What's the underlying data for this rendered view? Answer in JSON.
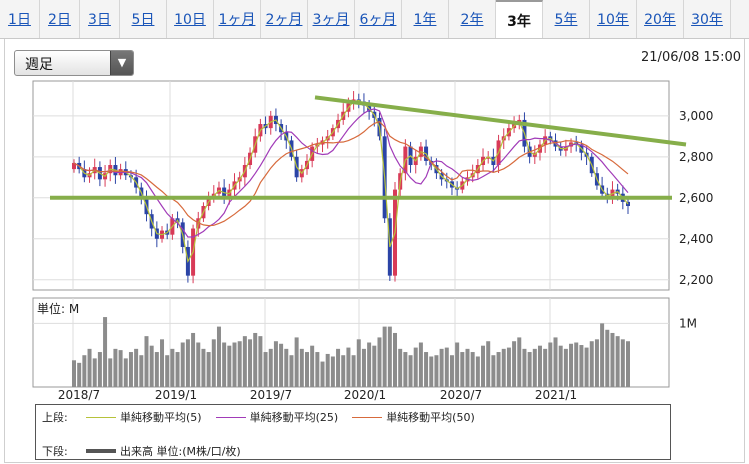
{
  "tabs": [
    "1日",
    "2日",
    "3日",
    "5日",
    "10日",
    "1ヶ月",
    "2ヶ月",
    "3ヶ月",
    "6ヶ月",
    "1年",
    "2年",
    "3年",
    "5年",
    "10年",
    "20年",
    "30年"
  ],
  "active_tab": "3年",
  "period_select": "週足",
  "datetime": "21/06/08 15:00",
  "legend": {
    "upper_label": "上段:",
    "lower_label": "下段:",
    "ma5": "単純移動平均(5)",
    "ma25": "単純移動平均(25)",
    "ma50": "単純移動平均(50)",
    "volume": "出来高 単位:(M株/口/枚)"
  },
  "colors": {
    "up": "#d83a57",
    "down": "#2b44a6",
    "ma5": "#b6c23a",
    "ma25": "#a13bb8",
    "ma50": "#d76a3c",
    "trend": "#86ae4a",
    "volume": "#8c8c8c"
  },
  "chart_data": {
    "type": "candlestick",
    "x_ticks": [
      "2018/7",
      "2019/1",
      "2019/7",
      "2020/1",
      "2020/7",
      "2021/1"
    ],
    "price_axis": {
      "ticks": [
        2200,
        2400,
        2600,
        2800,
        3000
      ],
      "ylim": [
        2150,
        3170
      ],
      "labels": [
        "2,200",
        "2,400",
        "2,600",
        "2,800",
        "3,000"
      ]
    },
    "volume_axis": {
      "unit_label": "単位: M",
      "tick_label": "1M",
      "tick_value": 1.0,
      "ylim": [
        0,
        1.4
      ]
    },
    "price_series": [
      2770,
      2740,
      2700,
      2720,
      2750,
      2690,
      2720,
      2760,
      2710,
      2740,
      2710,
      2700,
      2650,
      2600,
      2520,
      2450,
      2400,
      2440,
      2420,
      2500,
      2480,
      2360,
      2220,
      2450,
      2500,
      2560,
      2600,
      2620,
      2650,
      2600,
      2640,
      2680,
      2700,
      2760,
      2820,
      2900,
      2960,
      2940,
      3000,
      2960,
      2920,
      2880,
      2800,
      2700,
      2740,
      2780,
      2850,
      2860,
      2880,
      2900,
      2940,
      2980,
      3020,
      3060,
      3080,
      3070,
      3050,
      3020,
      2990,
      2900,
      2500,
      2220,
      2640,
      2720,
      2850,
      2760,
      2800,
      2850,
      2780,
      2760,
      2720,
      2690,
      2680,
      2650,
      2640,
      2680,
      2700,
      2720,
      2760,
      2800,
      2800,
      2760,
      2880,
      2900,
      2940,
      2960,
      2980,
      2850,
      2800,
      2820,
      2860,
      2900,
      2880,
      2850,
      2830,
      2850,
      2870,
      2860,
      2820,
      2800,
      2720,
      2660,
      2620,
      2600,
      2640,
      2620,
      2580,
      2560
    ],
    "volume": [
      0.42,
      0.38,
      0.5,
      0.6,
      0.45,
      0.55,
      1.1,
      0.45,
      0.6,
      0.58,
      0.45,
      0.55,
      0.6,
      0.5,
      0.8,
      0.65,
      0.55,
      0.75,
      0.5,
      0.6,
      0.55,
      0.7,
      0.75,
      0.85,
      0.7,
      0.6,
      0.55,
      0.75,
      0.95,
      0.7,
      0.65,
      0.7,
      0.72,
      0.8,
      0.75,
      0.85,
      0.8,
      0.55,
      0.6,
      0.72,
      0.68,
      0.6,
      0.5,
      0.78,
      0.6,
      0.55,
      0.65,
      0.55,
      0.4,
      0.52,
      0.48,
      0.6,
      0.5,
      0.62,
      0.5,
      0.75,
      0.6,
      0.7,
      0.65,
      0.78,
      0.95,
      0.95,
      0.85,
      0.6,
      0.55,
      0.5,
      0.62,
      0.7,
      0.55,
      0.48,
      0.5,
      0.6,
      0.62,
      0.5,
      0.7,
      0.55,
      0.6,
      0.55,
      0.48,
      0.65,
      0.72,
      0.5,
      0.55,
      0.6,
      0.62,
      0.72,
      0.78,
      0.6,
      0.55,
      0.6,
      0.65,
      0.6,
      0.7,
      0.78,
      0.65,
      0.6,
      0.68,
      0.7,
      0.66,
      0.62,
      0.72,
      0.75,
      1.0,
      0.9,
      0.85,
      0.8,
      0.75,
      0.72
    ],
    "trendline_resistance": {
      "from": {
        "x": "2020/1",
        "y": 3090
      },
      "to": {
        "x": "2021/6",
        "y": 2860
      }
    },
    "trendline_support": {
      "y": 2600
    },
    "grid": true
  }
}
